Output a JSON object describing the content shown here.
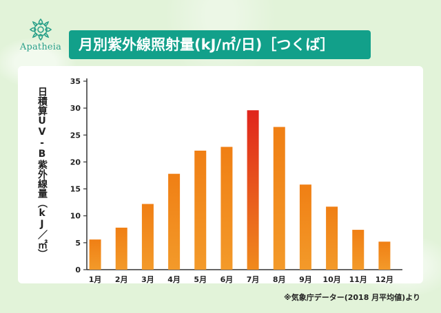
{
  "brand": {
    "logo_icon": "wreath-ornament-icon",
    "name": "Apatheia",
    "color": "#2aa089"
  },
  "header": {
    "title": "月別紫外線照射量(kJ/㎡/日)［つくば］",
    "background": "#12a08a"
  },
  "chart_data": {
    "type": "bar",
    "categories": [
      "1月",
      "2月",
      "3月",
      "4月",
      "5月",
      "6月",
      "7月",
      "8月",
      "9月",
      "10月",
      "11月",
      "12月"
    ],
    "values": [
      5.6,
      7.8,
      12.2,
      17.8,
      22.1,
      22.8,
      29.6,
      26.5,
      15.8,
      11.7,
      7.4,
      5.2
    ],
    "ylabel": "日積算UV-B紫外線量（kJ／㎡）",
    "ylim": [
      0,
      35
    ],
    "yticks": [
      0,
      5,
      10,
      15,
      20,
      25,
      30,
      35
    ],
    "grid": false,
    "bar_color": "#f08a1c",
    "highlight_color": "#e0241c",
    "highlight_category": "7月"
  },
  "footnote": "※気象庁データー(2018 月平均値)より"
}
